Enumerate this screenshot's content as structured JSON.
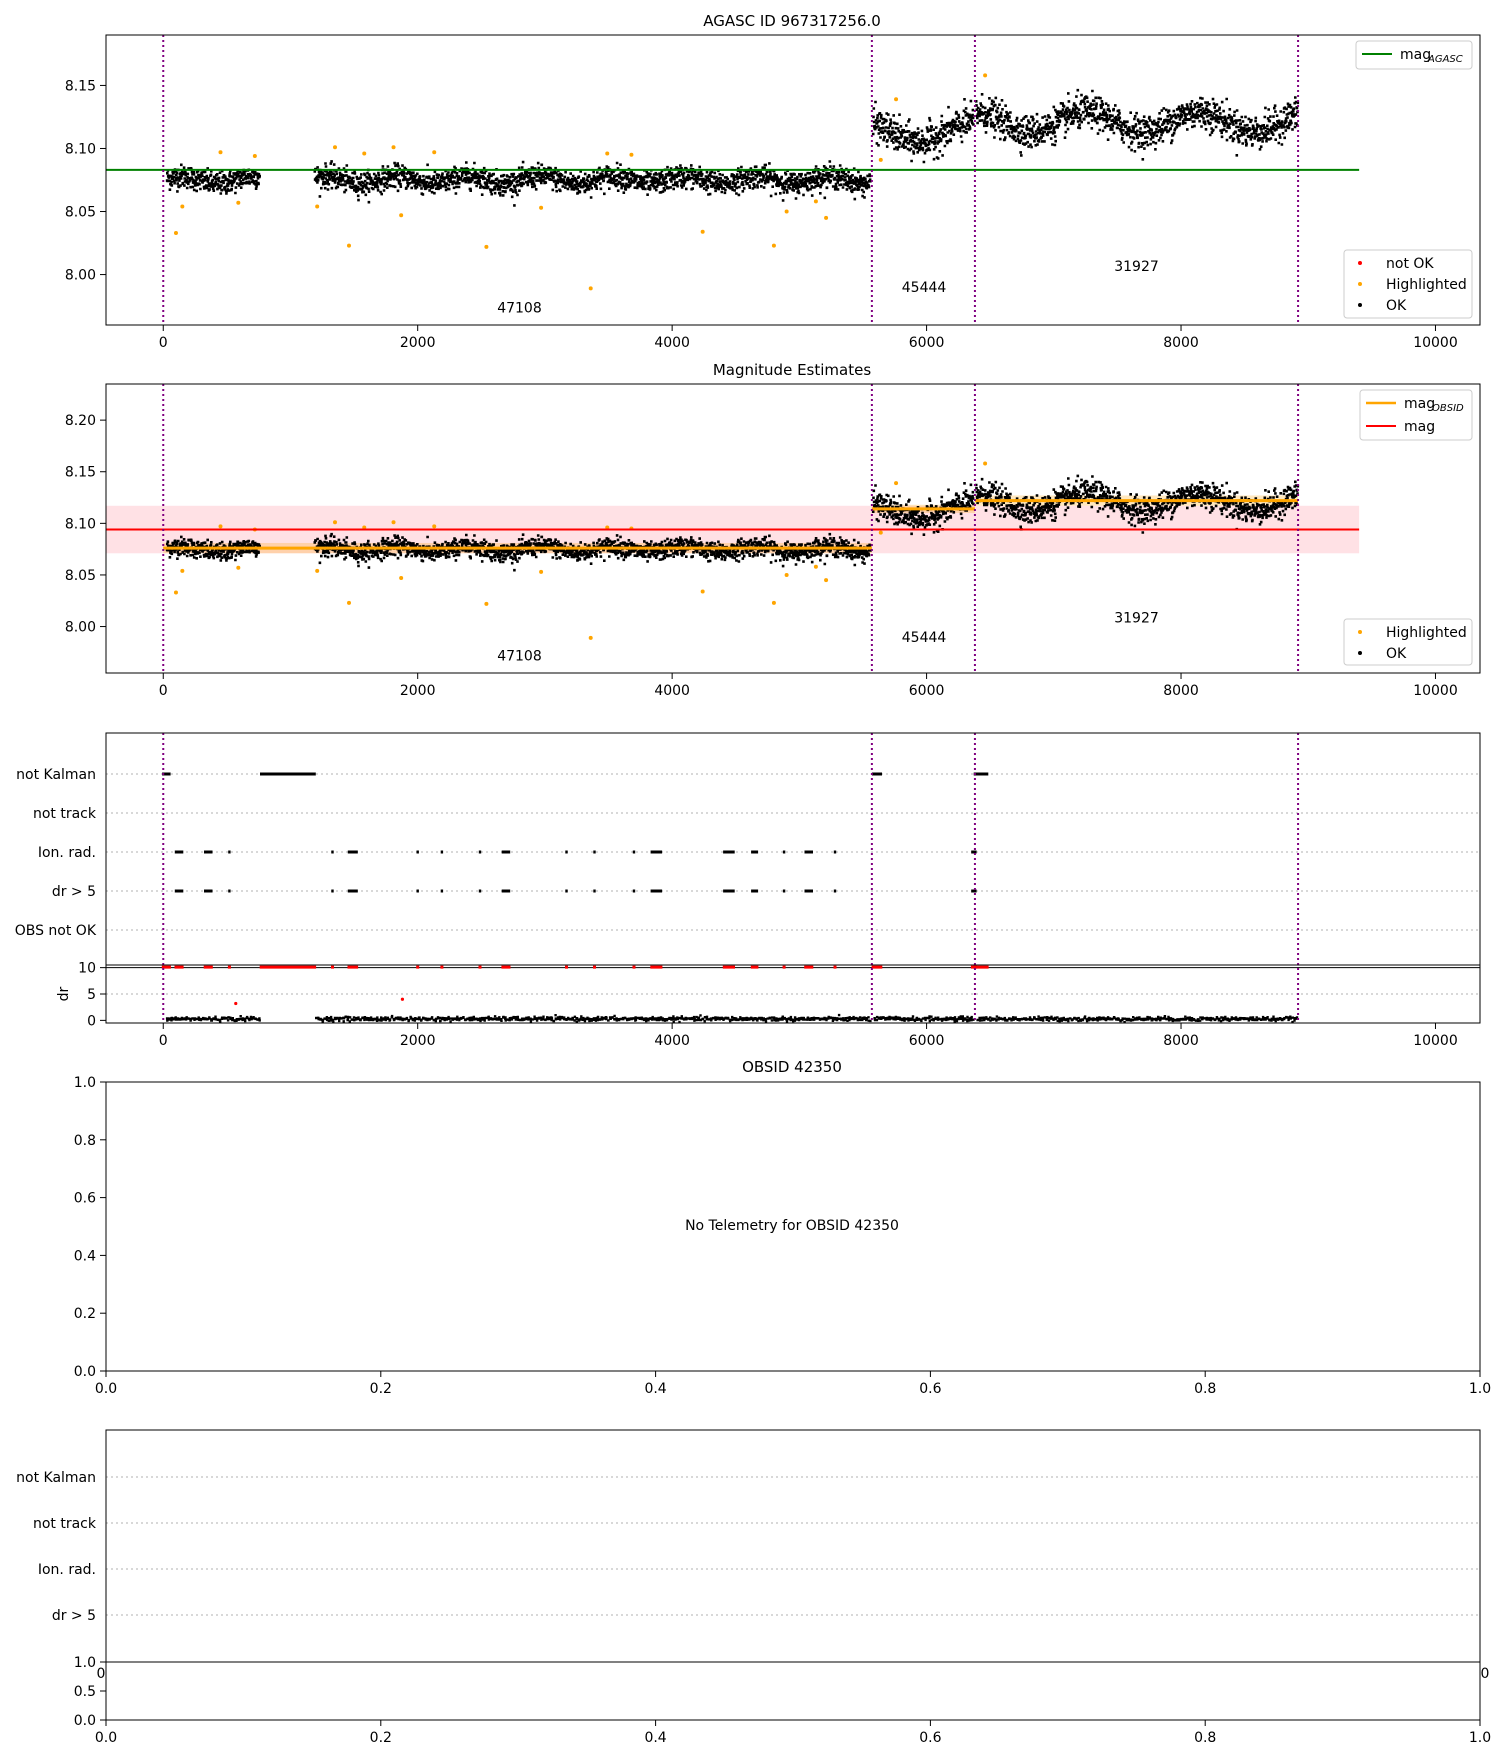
{
  "panels": {
    "p1": {
      "title": "AGASC ID 967317256.0",
      "xlim": [
        -450,
        10350
      ],
      "ylim": [
        7.96,
        8.19
      ],
      "xticks": [
        0,
        2000,
        4000,
        6000,
        8000,
        10000
      ],
      "yticks": [
        8.0,
        8.05,
        8.1,
        8.15
      ],
      "ref_line": {
        "y": 8.083,
        "x": [
          -450,
          9400
        ],
        "color": "#008000"
      },
      "legend_top": {
        "label": "mag",
        "sub": "AGASC",
        "color": "#008000"
      },
      "legend_bottom": [
        {
          "label": "not OK",
          "color": "#ff0000"
        },
        {
          "label": "Highlighted",
          "color": "#ffa500"
        },
        {
          "label": "OK",
          "color": "#000000"
        }
      ],
      "obsids": [
        {
          "label": "47108",
          "x": 2800,
          "y": 7.97
        },
        {
          "label": "45444",
          "x": 5980,
          "y": 7.986
        },
        {
          "label": "31927",
          "x": 7650,
          "y": 8.003
        }
      ]
    },
    "p2": {
      "title": "Magnitude Estimates",
      "xlim": [
        -450,
        10350
      ],
      "ylim": [
        7.955,
        8.235
      ],
      "xticks": [
        0,
        2000,
        4000,
        6000,
        8000,
        10000
      ],
      "yticks": [
        8.0,
        8.05,
        8.1,
        8.15,
        8.2
      ],
      "mag_line": {
        "y": 8.094,
        "band": [
          8.071,
          8.117
        ],
        "x": [
          -450,
          9400
        ],
        "color": "#ff0000"
      },
      "obsid_mag": [
        {
          "x": [
            0,
            5570
          ],
          "y": 8.076,
          "band": [
            8.071,
            8.081
          ]
        },
        {
          "x": [
            5570,
            6380
          ],
          "y": 8.114,
          "band": [
            8.11,
            8.118
          ]
        },
        {
          "x": [
            6380,
            8920
          ],
          "y": 8.122,
          "band": [
            8.117,
            8.127
          ]
        }
      ],
      "legend_top": [
        {
          "label": "mag",
          "sub": "OBSID",
          "color": "#ffa500"
        },
        {
          "label": "mag",
          "sub": "",
          "color": "#ff0000"
        }
      ],
      "legend_bottom": [
        {
          "label": "Highlighted",
          "color": "#ffa500"
        },
        {
          "label": "OK",
          "color": "#000000"
        }
      ],
      "obsids": [
        {
          "label": "47108",
          "x": 2800,
          "y": 7.967
        },
        {
          "label": "45444",
          "x": 5980,
          "y": 7.985
        },
        {
          "label": "31927",
          "x": 7650,
          "y": 8.004
        }
      ]
    },
    "p3": {
      "xlim": [
        -450,
        10350
      ],
      "flags": [
        "not Kalman",
        "not track",
        "Ion. rad.",
        "dr > 5",
        "OBS not OK"
      ],
      "dr_label": "dr",
      "dr_yticks": [
        0,
        5,
        10
      ],
      "dr_ylim": [
        -0.5,
        10.5
      ],
      "xticks": [
        0,
        2000,
        4000,
        6000,
        8000,
        10000
      ]
    },
    "p4": {
      "title": "OBSID 42350",
      "message": "No Telemetry for OBSID 42350",
      "xticks": [
        "0.0",
        "0.2",
        "0.4",
        "0.6",
        "0.8",
        "1.0"
      ],
      "yticks": [
        "0.0",
        "0.2",
        "0.4",
        "0.6",
        "0.8",
        "1.0"
      ]
    },
    "p5": {
      "flags": [
        "not Kalman",
        "not track",
        "Ion. rad.",
        "dr > 5"
      ],
      "dr_yticks": [
        "0.0",
        "0.5",
        "1.0"
      ],
      "xticks": [
        "0.0",
        "0.2",
        "0.4",
        "0.6",
        "0.8",
        "1.0"
      ],
      "clipped_ticks": [
        "0",
        "0"
      ]
    }
  },
  "chart_data": [
    {
      "type": "scatter",
      "title": "AGASC ID 967317256.0",
      "xlim": [
        -450,
        10350
      ],
      "ylim": [
        7.96,
        8.19
      ],
      "grid": false,
      "legend": [
        "top-right",
        "bottom-right"
      ],
      "segments": [
        {
          "obsid": "47108",
          "x_range": [
            0,
            5570
          ],
          "typical_mag": 8.076
        },
        {
          "obsid": "45444",
          "x_range": [
            5570,
            6380
          ],
          "typical_mag": 8.114
        },
        {
          "obsid": "31927",
          "x_range": [
            6380,
            8920
          ],
          "typical_mag": 8.122
        }
      ],
      "obsid_boundaries": [
        0,
        5570,
        6380,
        8920
      ],
      "highlighted_points": [
        {
          "x": 100,
          "y": 8.033
        },
        {
          "x": 150,
          "y": 8.054
        },
        {
          "x": 450,
          "y": 8.097
        },
        {
          "x": 590,
          "y": 8.057
        },
        {
          "x": 720,
          "y": 8.094
        },
        {
          "x": 1210,
          "y": 8.054
        },
        {
          "x": 1350,
          "y": 8.101
        },
        {
          "x": 1460,
          "y": 8.023
        },
        {
          "x": 1580,
          "y": 8.096
        },
        {
          "x": 1810,
          "y": 8.101
        },
        {
          "x": 1870,
          "y": 8.047
        },
        {
          "x": 2130,
          "y": 8.097
        },
        {
          "x": 2540,
          "y": 8.022
        },
        {
          "x": 2970,
          "y": 8.053
        },
        {
          "x": 3360,
          "y": 7.989
        },
        {
          "x": 3490,
          "y": 8.096
        },
        {
          "x": 3680,
          "y": 8.095
        },
        {
          "x": 4240,
          "y": 8.034
        },
        {
          "x": 4800,
          "y": 8.023
        },
        {
          "x": 4900,
          "y": 8.05
        },
        {
          "x": 5130,
          "y": 8.058
        },
        {
          "x": 5210,
          "y": 8.045
        },
        {
          "x": 5640,
          "y": 8.091
        },
        {
          "x": 5760,
          "y": 8.139
        },
        {
          "x": 6460,
          "y": 8.158
        }
      ],
      "series": [
        {
          "name": "mag",
          "type": "line",
          "x": [
            -450,
            9400
          ],
          "y": [
            8.083,
            8.083
          ]
        }
      ]
    },
    {
      "type": "scatter",
      "title": "Magnitude Estimates",
      "xlim": [
        -450,
        10350
      ],
      "ylim": [
        7.955,
        8.235
      ],
      "grid": false,
      "series": [
        {
          "name": "mag",
          "type": "line",
          "x": [
            -450,
            9400
          ],
          "y": [
            8.094,
            8.094
          ],
          "band": [
            8.071,
            8.117
          ]
        },
        {
          "name": "mag",
          "type": "step",
          "x": [
            0,
            5570,
            5570,
            6380,
            6380,
            8920
          ],
          "y": [
            8.076,
            8.076,
            8.114,
            8.114,
            8.122,
            8.122
          ]
        }
      ]
    },
    {
      "type": "scatter",
      "xlim": [
        -450,
        10350
      ],
      "categories": [
        "not Kalman",
        "not track",
        "Ion. rad.",
        "dr > 5",
        "OBS not OK"
      ],
      "flag_intervals": {
        "not Kalman": [
          [
            0,
            50
          ],
          [
            770,
            1200
          ],
          [
            5580,
            5640
          ],
          [
            6380,
            6480
          ]
        ],
        "Ion. rad.": [
          [
            100,
            150
          ],
          [
            330,
            380
          ],
          [
            520,
            530
          ],
          [
            1330,
            1340
          ],
          [
            1460,
            1520
          ],
          [
            2000,
            2010
          ],
          [
            2190,
            2200
          ],
          [
            2490,
            2500
          ],
          [
            2670,
            2720
          ],
          [
            3170,
            3180
          ],
          [
            3390,
            3400
          ],
          [
            3700,
            3710
          ],
          [
            3840,
            3920
          ],
          [
            4410,
            4490
          ],
          [
            4630,
            4670
          ],
          [
            4880,
            4890
          ],
          [
            5050,
            5100
          ],
          [
            5280,
            5290
          ],
          [
            6360,
            6390
          ]
        ],
        "dr > 5": [
          [
            100,
            150
          ],
          [
            330,
            380
          ],
          [
            520,
            530
          ],
          [
            1330,
            1340
          ],
          [
            1460,
            1520
          ],
          [
            2000,
            2010
          ],
          [
            2190,
            2200
          ],
          [
            2490,
            2500
          ],
          [
            2670,
            2720
          ],
          [
            3170,
            3180
          ],
          [
            3390,
            3400
          ],
          [
            3700,
            3710
          ],
          [
            3840,
            3920
          ],
          [
            4410,
            4490
          ],
          [
            4630,
            4670
          ],
          [
            4880,
            4890
          ],
          [
            5050,
            5100
          ],
          [
            5280,
            5290
          ],
          [
            6360,
            6390
          ]
        ]
      },
      "dr_typical": 0.5,
      "dr_ylim": [
        -0.5,
        10.5
      ],
      "dr_outliers": [
        {
          "x": 570,
          "y": 3.2
        },
        {
          "x": 1880,
          "y": 4.0
        }
      ]
    }
  ]
}
